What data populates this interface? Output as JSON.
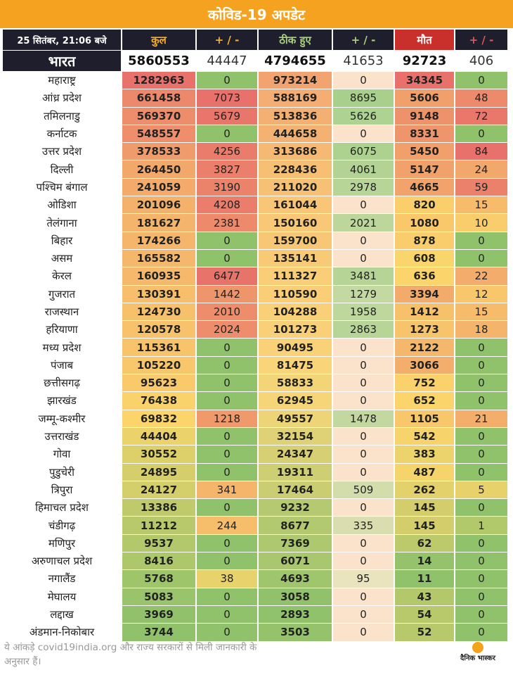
{
  "title": "कोविड-19 अपडेट",
  "header": {
    "date": "25 सितंबर, 21:06 बजे",
    "total": "कुल",
    "delta_total": "+ / -",
    "recovered": "ठीक हुए",
    "delta_recovered": "+ / -",
    "deaths": "मौत",
    "delta_deaths": "+ / -"
  },
  "india": {
    "name": "भारत",
    "total": "5860553",
    "delta_total": "44447",
    "recovered": "4794655",
    "delta_recovered": "41653",
    "deaths": "92723",
    "delta_deaths": "406"
  },
  "rows": [
    {
      "name": "महाराष्ट्र",
      "total": "1282963",
      "dt": "0",
      "rec": "973214",
      "dr": "0",
      "death": "34345",
      "dd": "0"
    },
    {
      "name": "आंध्र प्रदेश",
      "total": "661458",
      "dt": "7073",
      "rec": "588169",
      "dr": "8695",
      "death": "5606",
      "dd": "48"
    },
    {
      "name": "तमिलनाडु",
      "total": "569370",
      "dt": "5679",
      "rec": "513836",
      "dr": "5626",
      "death": "9148",
      "dd": "72"
    },
    {
      "name": "कर्नाटक",
      "total": "548557",
      "dt": "0",
      "rec": "444658",
      "dr": "0",
      "death": "8331",
      "dd": "0"
    },
    {
      "name": "उत्तर प्रदेश",
      "total": "378533",
      "dt": "4256",
      "rec": "313686",
      "dr": "6075",
      "death": "5450",
      "dd": "84"
    },
    {
      "name": "दिल्ली",
      "total": "264450",
      "dt": "3827",
      "rec": "228436",
      "dr": "4061",
      "death": "5147",
      "dd": "24"
    },
    {
      "name": "पश्चिम बंगाल",
      "total": "241059",
      "dt": "3190",
      "rec": "211020",
      "dr": "2978",
      "death": "4665",
      "dd": "59"
    },
    {
      "name": "ओडिशा",
      "total": "201096",
      "dt": "4208",
      "rec": "161044",
      "dr": "0",
      "death": "820",
      "dd": "15"
    },
    {
      "name": "तेलंगाना",
      "total": "181627",
      "dt": "2381",
      "rec": "150160",
      "dr": "2021",
      "death": "1080",
      "dd": "10"
    },
    {
      "name": "बिहार",
      "total": "174266",
      "dt": "0",
      "rec": "159700",
      "dr": "0",
      "death": "878",
      "dd": "0"
    },
    {
      "name": "असम",
      "total": "165582",
      "dt": "0",
      "rec": "135141",
      "dr": "0",
      "death": "608",
      "dd": "0"
    },
    {
      "name": "केरल",
      "total": "160935",
      "dt": "6477",
      "rec": "111327",
      "dr": "3481",
      "death": "636",
      "dd": "22"
    },
    {
      "name": "गुजरात",
      "total": "130391",
      "dt": "1442",
      "rec": "110590",
      "dr": "1279",
      "death": "3394",
      "dd": "12"
    },
    {
      "name": "राजस्थान",
      "total": "124730",
      "dt": "2010",
      "rec": "104288",
      "dr": "1958",
      "death": "1412",
      "dd": "15"
    },
    {
      "name": "हरियाणा",
      "total": "120578",
      "dt": "2024",
      "rec": "101273",
      "dr": "2863",
      "death": "1273",
      "dd": "18"
    },
    {
      "name": "मध्य प्रदेश",
      "total": "115361",
      "dt": "0",
      "rec": "90495",
      "dr": "0",
      "death": "2122",
      "dd": "0"
    },
    {
      "name": "पंजाब",
      "total": "105220",
      "dt": "0",
      "rec": "81475",
      "dr": "0",
      "death": "3066",
      "dd": "0"
    },
    {
      "name": "छत्तीसगढ़",
      "total": "95623",
      "dt": "0",
      "rec": "58833",
      "dr": "0",
      "death": "752",
      "dd": "0"
    },
    {
      "name": "झारखंड",
      "total": "76438",
      "dt": "0",
      "rec": "62945",
      "dr": "0",
      "death": "652",
      "dd": "0"
    },
    {
      "name": "जम्मू-कश्मीर",
      "total": "69832",
      "dt": "1218",
      "rec": "49557",
      "dr": "1478",
      "death": "1105",
      "dd": "21"
    },
    {
      "name": "उत्तराखंड",
      "total": "44404",
      "dt": "0",
      "rec": "32154",
      "dr": "0",
      "death": "542",
      "dd": "0"
    },
    {
      "name": "गोवा",
      "total": "30552",
      "dt": "0",
      "rec": "24347",
      "dr": "0",
      "death": "383",
      "dd": "0"
    },
    {
      "name": "पुडुचेरी",
      "total": "24895",
      "dt": "0",
      "rec": "19311",
      "dr": "0",
      "death": "487",
      "dd": "0"
    },
    {
      "name": "त्रिपुरा",
      "total": "24127",
      "dt": "341",
      "rec": "17464",
      "dr": "509",
      "death": "262",
      "dd": "5"
    },
    {
      "name": "हिमाचल प्रदेश",
      "total": "13386",
      "dt": "0",
      "rec": "9232",
      "dr": "0",
      "death": "145",
      "dd": "0"
    },
    {
      "name": "चंडीगढ़",
      "total": "11212",
      "dt": "244",
      "rec": "8677",
      "dr": "335",
      "death": "145",
      "dd": "1"
    },
    {
      "name": "मणिपुर",
      "total": "9537",
      "dt": "0",
      "rec": "7369",
      "dr": "0",
      "death": "62",
      "dd": "0"
    },
    {
      "name": "अरुणाचल प्रदेश",
      "total": "8416",
      "dt": "0",
      "rec": "6071",
      "dr": "0",
      "death": "14",
      "dd": "0"
    },
    {
      "name": "नगालैंड",
      "total": "5768",
      "dt": "38",
      "rec": "4693",
      "dr": "95",
      "death": "11",
      "dd": "0"
    },
    {
      "name": "मेघालय",
      "total": "5083",
      "dt": "0",
      "rec": "3058",
      "dr": "0",
      "death": "43",
      "dd": "0"
    },
    {
      "name": "लद्दाख",
      "total": "3969",
      "dt": "0",
      "rec": "2893",
      "dr": "0",
      "death": "54",
      "dd": "0"
    },
    {
      "name": "अंडमान-निकोबार",
      "total": "3744",
      "dt": "0",
      "rec": "3503",
      "dr": "0",
      "death": "52",
      "dd": "0"
    }
  ],
  "footnote": "ये आंकड़े covid19india.org और राज्य सरकारों से मिली जानकारी के अनुसार हैं।",
  "logo_text": "दैनिक भास्कर",
  "colors": {
    "title_bar": "#f4a21f",
    "header_bg": "#1e1e2c",
    "death_header": "#c9302c",
    "scale_high": "#e8716b",
    "scale_mid": "#fbd56b",
    "scale_low": "#8fc26b"
  }
}
